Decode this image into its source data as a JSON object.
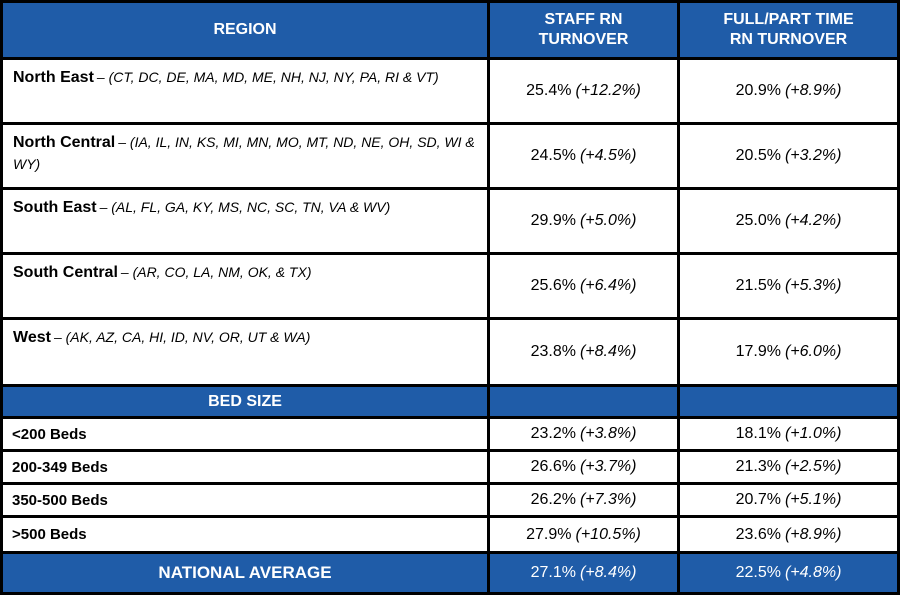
{
  "colors": {
    "header_blue": "#1F5CA8",
    "grid_border": "#000000",
    "header_text": "#FFFFFF",
    "body_text": "#000000"
  },
  "table": {
    "headers": [
      "REGION",
      "STAFF RN\nTURNOVER",
      "FULL/PART TIME\nRN TURNOVER"
    ],
    "region_rows": [
      {
        "name": "North East",
        "states": "– (CT, DC, DE, MA, MD, ME, NH, NJ, NY, PA, RI & VT)",
        "staff_value": "25.4%",
        "staff_change": "(+12.2%)",
        "fpt_value": "20.9%",
        "fpt_change": "(+8.9%)"
      },
      {
        "name": "North Central",
        "states": "– (IA, IL, IN, KS, MI, MN, MO, MT, ND, NE, OH, SD, WI & WY)",
        "staff_value": "24.5%",
        "staff_change": "(+4.5%)",
        "fpt_value": "20.5%",
        "fpt_change": "(+3.2%)"
      },
      {
        "name": "South East",
        "states": "– (AL, FL, GA, KY, MS, NC, SC, TN, VA & WV)",
        "staff_value": "29.9%",
        "staff_change": "(+5.0%)",
        "fpt_value": "25.0%",
        "fpt_change": "(+4.2%)"
      },
      {
        "name": "South Central",
        "states": "– (AR, CO, LA, NM, OK, & TX)",
        "staff_value": "25.6%",
        "staff_change": "(+6.4%)",
        "fpt_value": "21.5%",
        "fpt_change": "(+5.3%)"
      },
      {
        "name": "West",
        "states": "– (AK, AZ, CA, HI, ID, NV, OR, UT & WA)",
        "staff_value": "23.8%",
        "staff_change": "(+8.4%)",
        "fpt_value": "17.9%",
        "fpt_change": "(+6.0%)"
      }
    ],
    "bed_size_section": {
      "title": "BED SIZE"
    },
    "bed_rows": [
      {
        "label": "<200 Beds",
        "staff_value": "23.2%",
        "staff_change": "(+3.8%)",
        "fpt_value": "18.1%",
        "fpt_change": "(+1.0%)"
      },
      {
        "label": "200-349 Beds",
        "staff_value": "26.6%",
        "staff_change": "(+3.7%)",
        "fpt_value": "21.3%",
        "fpt_change": "(+2.5%)"
      },
      {
        "label": "350-500 Beds",
        "staff_value": "26.2%",
        "staff_change": "(+7.3%)",
        "fpt_value": "20.7%",
        "fpt_change": "(+5.1%)"
      },
      {
        "label": ">500 Beds",
        "staff_value": "27.9%",
        "staff_change": "(+10.5%)",
        "fpt_value": "23.6%",
        "fpt_change": "(+8.9%)"
      }
    ],
    "national": {
      "label": "NATIONAL AVERAGE",
      "staff_value": "27.1%",
      "staff_change": "(+8.4%)",
      "fpt_value": "22.5%",
      "fpt_change": "(+4.8%)"
    }
  }
}
